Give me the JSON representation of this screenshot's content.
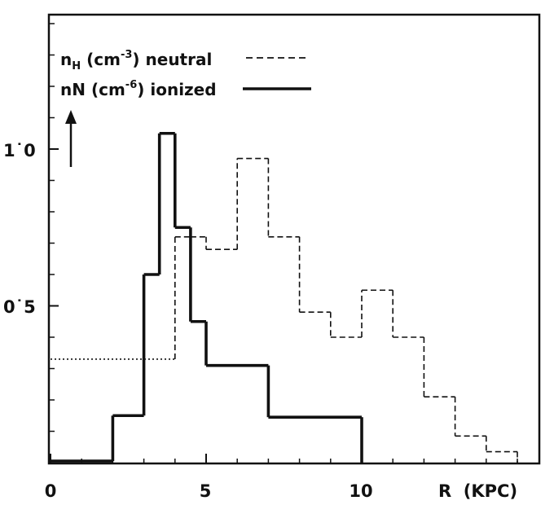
{
  "chart_data": {
    "type": "line",
    "step": true,
    "xlabel": "R  (KPC)",
    "ylabel": "",
    "xlim": [
      0,
      15.8
    ],
    "ylim": [
      0,
      1.42
    ],
    "xticks": [
      {
        "value": 0,
        "label": "0"
      },
      {
        "value": 5,
        "label": "5"
      },
      {
        "value": 10,
        "label": "10"
      }
    ],
    "yticks": [
      {
        "value": 0.5,
        "label": "0˙5"
      },
      {
        "value": 1.0,
        "label": "1˙0"
      }
    ],
    "minor_yticks": [
      0.1,
      0.2,
      0.3,
      0.4,
      0.6,
      0.7,
      0.8,
      0.9,
      1.1,
      1.2,
      1.3,
      1.4
    ],
    "minor_xticks": [
      1,
      2,
      3,
      4,
      6,
      7,
      8,
      9,
      11,
      12,
      13,
      14,
      15
    ],
    "grid": false,
    "legend_position": "top-left",
    "series": [
      {
        "name": "neutral",
        "legend": {
          "main": "n",
          "sub": "H",
          "unit_open": " (cm",
          "sup": "-3",
          "unit_close": ")",
          "desc": " neutral"
        },
        "style": "dashed",
        "color": "#111111",
        "edges": [
          0,
          4,
          4.5,
          5,
          6,
          7,
          8,
          9,
          10,
          11,
          12,
          13,
          14,
          15
        ],
        "values": [
          0.33,
          0.72,
          0.72,
          0.68,
          0.97,
          0.72,
          0.48,
          0.4,
          0.55,
          0.4,
          0.21,
          0.085,
          0.035
        ],
        "dotted_until": 2
      },
      {
        "name": "ionized",
        "legend": {
          "main": "nN",
          "sub": "",
          "unit_open": " (cm",
          "sup": "-6",
          "unit_close": ")",
          "desc": " ionized"
        },
        "style": "solid",
        "color": "#111111",
        "edges": [
          0,
          2,
          3,
          3.5,
          4,
          4.5,
          5,
          7,
          10
        ],
        "values": [
          0.005,
          0.15,
          0.6,
          1.05,
          0.75,
          0.45,
          0.31,
          0.145
        ]
      }
    ]
  }
}
